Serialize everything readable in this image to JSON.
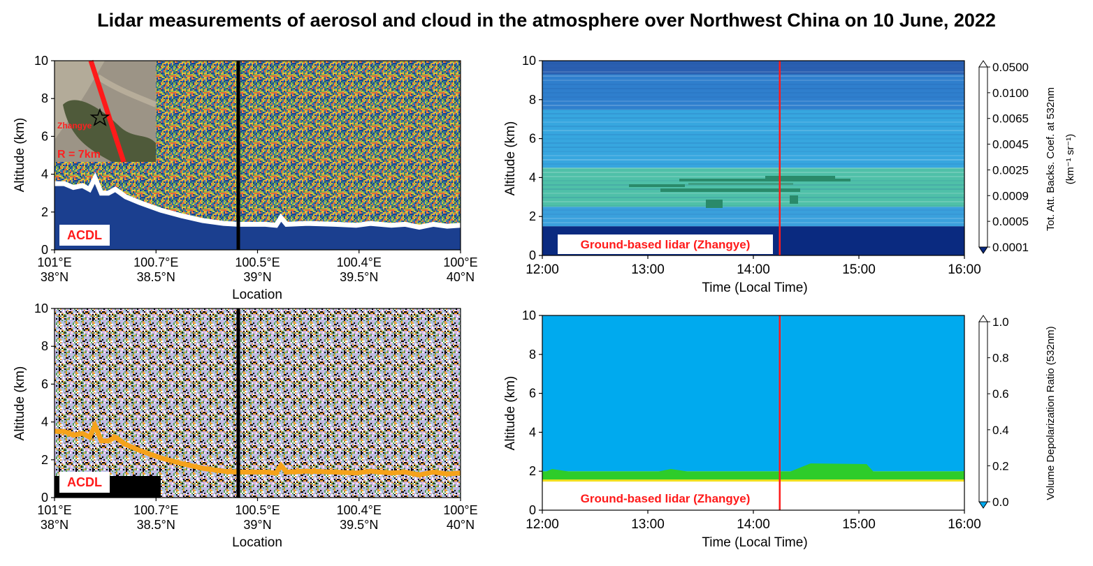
{
  "title": "Lidar measurements of aerosol and cloud in the atmosphere over Northwest China on 10 June, 2022",
  "chart_data": [
    {
      "type": "heatmap",
      "panel": "top-left",
      "ylabel": "Altitude (km)",
      "xlabel": "Location",
      "ylim": [
        0,
        10
      ],
      "yticks": [
        "0",
        "2",
        "4",
        "6",
        "8",
        "10"
      ],
      "xticks": [
        {
          "lon": "101°E",
          "lat": "38°N"
        },
        {
          "lon": "100.7°E",
          "lat": "38.5°N"
        },
        {
          "lon": "100.5°E",
          "lat": "39°N"
        },
        {
          "lon": "100.4°E",
          "lat": "39.5°N"
        },
        {
          "lon": "100°E",
          "lat": "40°N"
        }
      ],
      "label_box": "ACDL",
      "inset": {
        "site": "Zhangye",
        "radius_label": "R = 7km"
      },
      "palette": [
        "#1b3f8f",
        "#2f6db5",
        "#3d8a6b",
        "#8fb84a",
        "#e0c73a",
        "#f2a13c",
        "#e3683a"
      ],
      "surface_color": "#ffffff"
    },
    {
      "type": "heatmap",
      "panel": "bottom-left",
      "ylabel": "Altitude (km)",
      "xlabel": "Location",
      "ylim": [
        0,
        10
      ],
      "yticks": [
        "0",
        "2",
        "4",
        "6",
        "8",
        "10"
      ],
      "xticks": [
        {
          "lon": "101°E",
          "lat": "38°N"
        },
        {
          "lon": "100.7°E",
          "lat": "38.5°N"
        },
        {
          "lon": "100.5°E",
          "lat": "39°N"
        },
        {
          "lon": "100.4°E",
          "lat": "39.5°N"
        },
        {
          "lon": "100°E",
          "lat": "40°N"
        }
      ],
      "label_box": "ACDL",
      "palette": [
        "#000000",
        "#ffffff",
        "#d9b3e8",
        "#a8c8e8",
        "#5fa05a",
        "#f0a030",
        "#c2b3d9"
      ],
      "surface_color": "#f5a21b"
    },
    {
      "type": "heatmap",
      "panel": "top-right",
      "ylabel": "Altitude (km)",
      "xlabel": "Time (Local Time)",
      "ylim": [
        0,
        10
      ],
      "yticks": [
        "0",
        "2",
        "4",
        "6",
        "8",
        "10"
      ],
      "xticks": [
        "12:00",
        "13:00",
        "14:00",
        "15:00",
        "16:00"
      ],
      "label_box": "Ground-based lidar (Zhangye)",
      "marker_time": "14:15",
      "colorbar": {
        "label": "Tot. Att. Backs. Coef. at 532nm",
        "unit": "(km⁻¹ sr⁻¹)",
        "ticks": [
          "0.0001",
          "0.0005",
          "0.0009",
          "0.0025",
          "0.0045",
          "0.0065",
          "0.0100",
          "0.0500"
        ],
        "colors": [
          "#0a2a80",
          "#1f4fa8",
          "#2f72c6",
          "#3aa0dc",
          "#3cc0c0",
          "#2a8a6a",
          "#9bd25a",
          "#f0e030",
          "#f5a620",
          "#ec5a2a",
          "#e82060",
          "#aaaaaa",
          "#808080",
          "#d0d0d0",
          "#eeeeee",
          "#ffffff"
        ]
      },
      "layers": [
        {
          "from_km": 0,
          "to_km": 1.5,
          "color": "#0a2a80"
        },
        {
          "from_km": 1.5,
          "to_km": 2.5,
          "color": "#3aa0dc"
        },
        {
          "from_km": 2.5,
          "to_km": 4.5,
          "color": "#4fc0a8"
        },
        {
          "from_km": 4.5,
          "to_km": 7.5,
          "color": "#37a6df"
        },
        {
          "from_km": 7.5,
          "to_km": 9.3,
          "color": "#2f7fcd"
        },
        {
          "from_km": 9.3,
          "to_km": 10,
          "color": "#2a5fb0"
        }
      ]
    },
    {
      "type": "heatmap",
      "panel": "bottom-right",
      "ylabel": "Altitude (km)",
      "xlabel": "Time (Local Time)",
      "ylim": [
        0,
        10
      ],
      "yticks": [
        "0",
        "2",
        "4",
        "6",
        "8",
        "10"
      ],
      "xticks": [
        "12:00",
        "13:00",
        "14:00",
        "15:00",
        "16:00"
      ],
      "label_box": "Ground-based lidar (Zhangye)",
      "marker_time": "14:15",
      "colorbar": {
        "label": "Volume Depolarization Ratio (532nm)",
        "ticks": [
          "0.0",
          "0.2",
          "0.4",
          "0.6",
          "0.8",
          "1.0"
        ],
        "colors": [
          "#00aaee",
          "#22c020",
          "#f0e020",
          "#f59a10",
          "#ee1010",
          "#ee10ee",
          "#f0d0f0",
          "#a060e0",
          "#ffffff",
          "#ffffff"
        ]
      },
      "layers": [
        {
          "from_km": 0,
          "to_km": 1.5,
          "color": "#ffffff"
        },
        {
          "from_km": 1.5,
          "to_km": 2.0,
          "color": "#2ecc2a"
        },
        {
          "from_km": 2.0,
          "to_km": 10,
          "color": "#00aaee"
        }
      ]
    }
  ]
}
